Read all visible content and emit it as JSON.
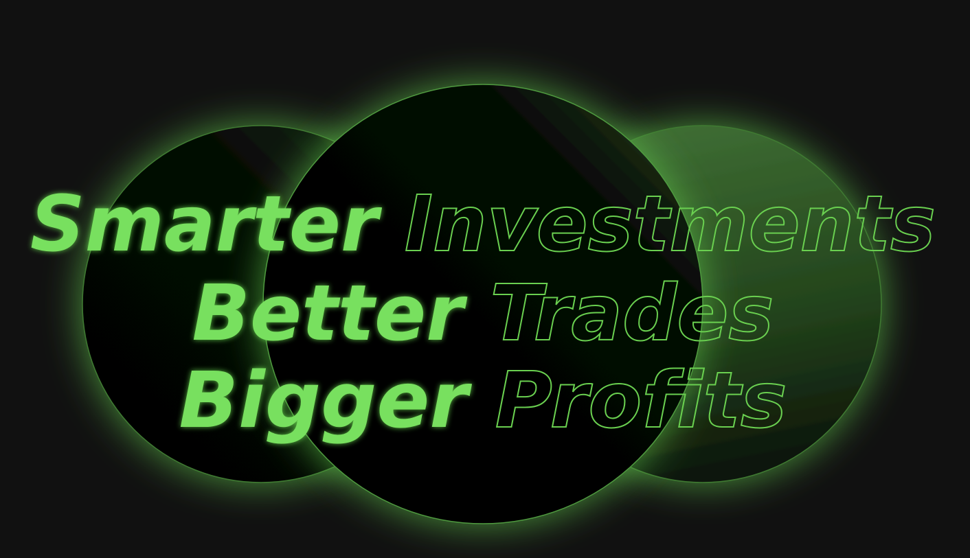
{
  "headline": {
    "lines": [
      {
        "solid": "Smarter",
        "outline": "Investments"
      },
      {
        "solid": "Better",
        "outline": "Trades"
      },
      {
        "solid": "Bigger",
        "outline": "Profits"
      }
    ]
  }
}
